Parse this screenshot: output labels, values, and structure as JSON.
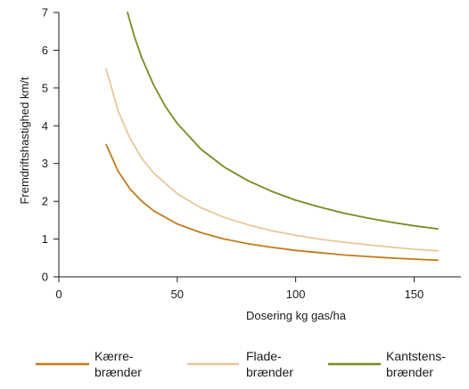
{
  "chart_data": {
    "type": "line",
    "title": "",
    "xlabel": "Dosering kg gas/ha",
    "ylabel": "Fremdriftshastighed km/t",
    "xlim": [
      0,
      170
    ],
    "ylim": [
      0,
      7
    ],
    "xticks": [
      0,
      50,
      100,
      150
    ],
    "yticks": [
      0,
      1,
      2,
      3,
      4,
      5,
      6,
      7
    ],
    "grid": false,
    "legend_position": "bottom",
    "series": [
      {
        "name": "Kærre-\nbrænder",
        "color": "#c27b1c",
        "x": [
          20,
          25,
          30,
          35,
          40,
          50,
          60,
          70,
          80,
          90,
          100,
          110,
          120,
          130,
          140,
          150,
          160
        ],
        "values": [
          3.5,
          2.8,
          2.33,
          2.0,
          1.75,
          1.4,
          1.17,
          1.0,
          0.875,
          0.78,
          0.7,
          0.64,
          0.58,
          0.54,
          0.5,
          0.47,
          0.44
        ]
      },
      {
        "name": "Flade-\nbrænder",
        "color": "#e9c79a",
        "x": [
          20,
          25,
          30,
          35,
          40,
          50,
          60,
          70,
          80,
          90,
          100,
          110,
          120,
          130,
          140,
          150,
          160
        ],
        "values": [
          5.5,
          4.4,
          3.67,
          3.14,
          2.75,
          2.2,
          1.83,
          1.57,
          1.375,
          1.22,
          1.1,
          1.0,
          0.92,
          0.85,
          0.79,
          0.73,
          0.69
        ]
      },
      {
        "name": "Kantstens-\nbrænder",
        "color": "#7a8a22",
        "x": [
          29,
          32,
          35,
          40,
          45,
          50,
          60,
          70,
          80,
          90,
          100,
          110,
          120,
          130,
          140,
          150,
          160
        ],
        "values": [
          7.0,
          6.34,
          5.8,
          5.08,
          4.51,
          4.06,
          3.38,
          2.9,
          2.54,
          2.26,
          2.03,
          1.85,
          1.69,
          1.56,
          1.45,
          1.35,
          1.27
        ]
      }
    ]
  }
}
